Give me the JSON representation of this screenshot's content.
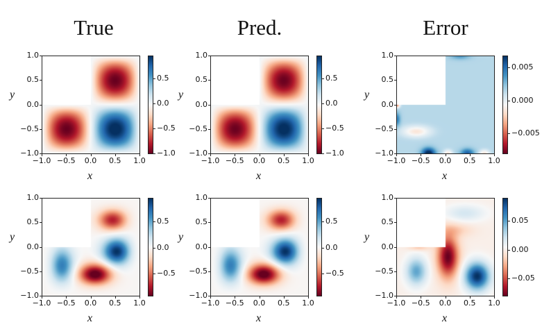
{
  "titles": [
    "True",
    "Pred.",
    "Error"
  ],
  "chart_data": {
    "type": "heatmap",
    "xlabel": "x",
    "ylabel": "y",
    "x_ticks": [
      "−1.0",
      "−0.5",
      "0.0",
      "0.5",
      "1.0"
    ],
    "y_ticks": [
      "−1.0",
      "−0.5",
      "0.0",
      "0.5",
      "1.0"
    ],
    "xlim": [
      -1,
      1
    ],
    "ylim": [
      -1,
      1
    ],
    "colormap": "RdBu",
    "panels": [
      {
        "row": 0,
        "col": 0,
        "title": "True",
        "vmin": -1.0,
        "vmax": 0.95,
        "cbar_ticks": [
          {
            "v": 0.5,
            "t": "0.5"
          },
          {
            "v": 0,
            "t": "0.0"
          },
          {
            "v": -0.5,
            "t": "−0.5"
          },
          {
            "v": -1.0,
            "t": "−1.0"
          }
        ]
      },
      {
        "row": 0,
        "col": 1,
        "title": "Pred.",
        "vmin": -1.0,
        "vmax": 0.95,
        "cbar_ticks": [
          {
            "v": 0.5,
            "t": "0.5"
          },
          {
            "v": 0,
            "t": "0.0"
          },
          {
            "v": -0.5,
            "t": "−0.5"
          },
          {
            "v": -1.0,
            "t": "−1.0"
          }
        ]
      },
      {
        "row": 0,
        "col": 2,
        "title": "Error",
        "vmin": -0.008,
        "vmax": 0.0068,
        "cbar_ticks": [
          {
            "v": 0.005,
            "t": "0.005"
          },
          {
            "v": 0,
            "t": "0.000"
          },
          {
            "v": -0.005,
            "t": "−0.005"
          }
        ]
      },
      {
        "row": 1,
        "col": 0,
        "title": "True",
        "vmin": -0.92,
        "vmax": 0.95,
        "cbar_ticks": [
          {
            "v": 0.5,
            "t": "0.5"
          },
          {
            "v": 0,
            "t": "0.0"
          },
          {
            "v": -0.5,
            "t": "−0.5"
          }
        ]
      },
      {
        "row": 1,
        "col": 1,
        "title": "Pred.",
        "vmin": -0.92,
        "vmax": 0.95,
        "cbar_ticks": [
          {
            "v": 0.5,
            "t": "0.5"
          },
          {
            "v": 0,
            "t": "0.0"
          },
          {
            "v": -0.5,
            "t": "−0.5"
          }
        ]
      },
      {
        "row": 1,
        "col": 2,
        "title": "Error",
        "vmin": -0.08,
        "vmax": 0.09,
        "cbar_ticks": [
          {
            "v": 0.05,
            "t": "0.05"
          },
          {
            "v": 0,
            "t": "0.00"
          },
          {
            "v": -0.05,
            "t": "−0.05"
          }
        ]
      }
    ]
  }
}
